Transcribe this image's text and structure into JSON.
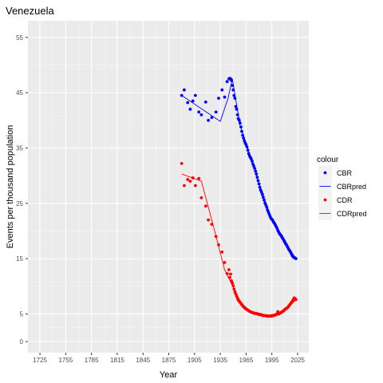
{
  "chart_data": {
    "type": "line",
    "title": "Venezuela",
    "xlabel": "Year",
    "ylabel": "Events per thousand population",
    "xlim": [
      1711,
      2038
    ],
    "ylim": [
      -2,
      58
    ],
    "x_ticks": [
      1725,
      1755,
      1785,
      1815,
      1845,
      1875,
      1905,
      1935,
      1965,
      1995,
      2025
    ],
    "y_ticks": [
      0,
      5,
      15,
      25,
      35,
      45,
      55
    ],
    "grid": true,
    "legend": {
      "title": "colour",
      "position": "right"
    },
    "series": [
      {
        "name": "CBR",
        "kind": "points",
        "color": "#0000ff",
        "x": [
          1890,
          1893,
          1897,
          1900,
          1903,
          1906,
          1910,
          1913,
          1918,
          1921,
          1925,
          1930,
          1933,
          1937,
          1940,
          1943,
          1945,
          1946,
          1947,
          1948,
          1949,
          1950,
          1951,
          1952,
          1953,
          1954,
          1955,
          1956,
          1957,
          1958,
          1959,
          1960,
          1961,
          1962,
          1963,
          1964,
          1965,
          1966,
          1967,
          1968,
          1969,
          1970,
          1971,
          1972,
          1973,
          1974,
          1975,
          1976,
          1977,
          1978,
          1979,
          1980,
          1981,
          1982,
          1983,
          1984,
          1985,
          1986,
          1987,
          1988,
          1989,
          1990,
          1991,
          1992,
          1993,
          1994,
          1995,
          1996,
          1997,
          1998,
          1999,
          2000,
          2001,
          2002,
          2003,
          2004,
          2005,
          2006,
          2007,
          2008,
          2009,
          2010,
          2011,
          2012,
          2013,
          2014,
          2015,
          2016,
          2017,
          2018,
          2019,
          2020,
          2021,
          2022,
          2023
        ],
        "y": [
          44.5,
          45.5,
          43.2,
          42.0,
          43.5,
          44.5,
          41.5,
          41.0,
          43.3,
          40.0,
          40.5,
          41.5,
          44.0,
          45.5,
          44.2,
          47.0,
          47.5,
          47.6,
          47.5,
          47.2,
          46.3,
          45.5,
          44.5,
          44.0,
          42.5,
          42.0,
          41.0,
          40.3,
          40.0,
          39.5,
          38.8,
          38.0,
          37.3,
          36.8,
          36.3,
          35.9,
          35.6,
          35.2,
          34.6,
          34.0,
          33.6,
          33.3,
          33.0,
          32.6,
          32.1,
          31.7,
          31.3,
          30.8,
          30.3,
          29.7,
          29.1,
          28.5,
          27.9,
          27.4,
          27.0,
          26.6,
          26.1,
          25.6,
          25.1,
          24.7,
          24.3,
          23.8,
          23.4,
          23.0,
          22.6,
          22.3,
          22.1,
          21.9,
          21.6,
          21.4,
          21.1,
          20.8,
          20.5,
          20.1,
          19.8,
          19.5,
          19.3,
          19.1,
          18.8,
          18.6,
          18.3,
          18.0,
          17.7,
          17.5,
          17.2,
          16.9,
          16.6,
          16.4,
          16.1,
          15.8,
          15.5,
          15.3,
          15.2,
          15.1,
          15.0
        ]
      },
      {
        "name": "CBRpred",
        "kind": "line",
        "color": "#0000ff",
        "x": [
          1890,
          1935,
          1944,
          1949,
          1958,
          1970,
          1980,
          1990,
          2000,
          2010,
          2023
        ],
        "y": [
          44.5,
          39.8,
          44.0,
          47.5,
          39.0,
          33.5,
          28.5,
          23.5,
          20.5,
          18.0,
          15.0
        ]
      },
      {
        "name": "CDR",
        "kind": "points",
        "color": "#ff0000",
        "x": [
          1890,
          1893,
          1897,
          1900,
          1903,
          1906,
          1910,
          1913,
          1918,
          1921,
          1925,
          1930,
          1933,
          1937,
          1940,
          1943,
          1945,
          1946,
          1947,
          1948,
          1949,
          1950,
          1951,
          1952,
          1953,
          1954,
          1955,
          1956,
          1957,
          1958,
          1959,
          1960,
          1961,
          1962,
          1963,
          1964,
          1965,
          1966,
          1967,
          1968,
          1969,
          1970,
          1971,
          1972,
          1973,
          1974,
          1975,
          1976,
          1977,
          1978,
          1979,
          1980,
          1981,
          1982,
          1983,
          1984,
          1985,
          1986,
          1987,
          1988,
          1989,
          1990,
          1991,
          1992,
          1993,
          1994,
          1995,
          1996,
          1997,
          1998,
          1999,
          2000,
          2001,
          2002,
          2003,
          2004,
          2005,
          2006,
          2007,
          2008,
          2009,
          2010,
          2011,
          2012,
          2013,
          2014,
          2015,
          2016,
          2017,
          2018,
          2019,
          2020,
          2021,
          2022,
          2023
        ],
        "y": [
          32.2,
          28.2,
          29.3,
          29.0,
          29.6,
          28.2,
          29.5,
          26.0,
          24.5,
          22.0,
          21.2,
          19.0,
          17.5,
          16.2,
          14.3,
          12.3,
          13.0,
          11.6,
          12.2,
          11.0,
          10.6,
          10.1,
          9.5,
          9.0,
          8.6,
          8.2,
          7.8,
          7.5,
          7.3,
          7.1,
          6.9,
          6.7,
          6.5,
          6.3,
          6.2,
          6.0,
          5.9,
          5.8,
          5.7,
          5.6,
          5.5,
          5.4,
          5.3,
          5.3,
          5.2,
          5.2,
          5.1,
          5.1,
          5.1,
          5.0,
          5.0,
          4.9,
          4.9,
          4.9,
          4.8,
          4.8,
          4.7,
          4.7,
          4.7,
          4.7,
          4.6,
          4.6,
          4.6,
          4.6,
          4.6,
          4.6,
          4.6,
          4.7,
          4.7,
          4.8,
          4.8,
          4.9,
          5.0,
          5.4,
          5.0,
          5.1,
          5.2,
          5.3,
          5.4,
          5.5,
          5.6,
          5.8,
          5.9,
          6.0,
          6.1,
          6.3,
          6.5,
          6.7,
          6.9,
          7.1,
          7.3,
          7.6,
          7.9,
          7.8,
          7.6
        ]
      },
      {
        "name": "CDRpred",
        "kind": "line",
        "color": "#ff0000",
        "x": [
          1890,
          1913,
          1925,
          1940,
          1950,
          1960,
          1970,
          1980,
          1990,
          2000,
          2010,
          2023
        ],
        "y": [
          30.3,
          29.0,
          22.0,
          13.0,
          9.8,
          6.8,
          5.5,
          5.0,
          4.8,
          5.0,
          5.8,
          7.5
        ]
      }
    ]
  }
}
